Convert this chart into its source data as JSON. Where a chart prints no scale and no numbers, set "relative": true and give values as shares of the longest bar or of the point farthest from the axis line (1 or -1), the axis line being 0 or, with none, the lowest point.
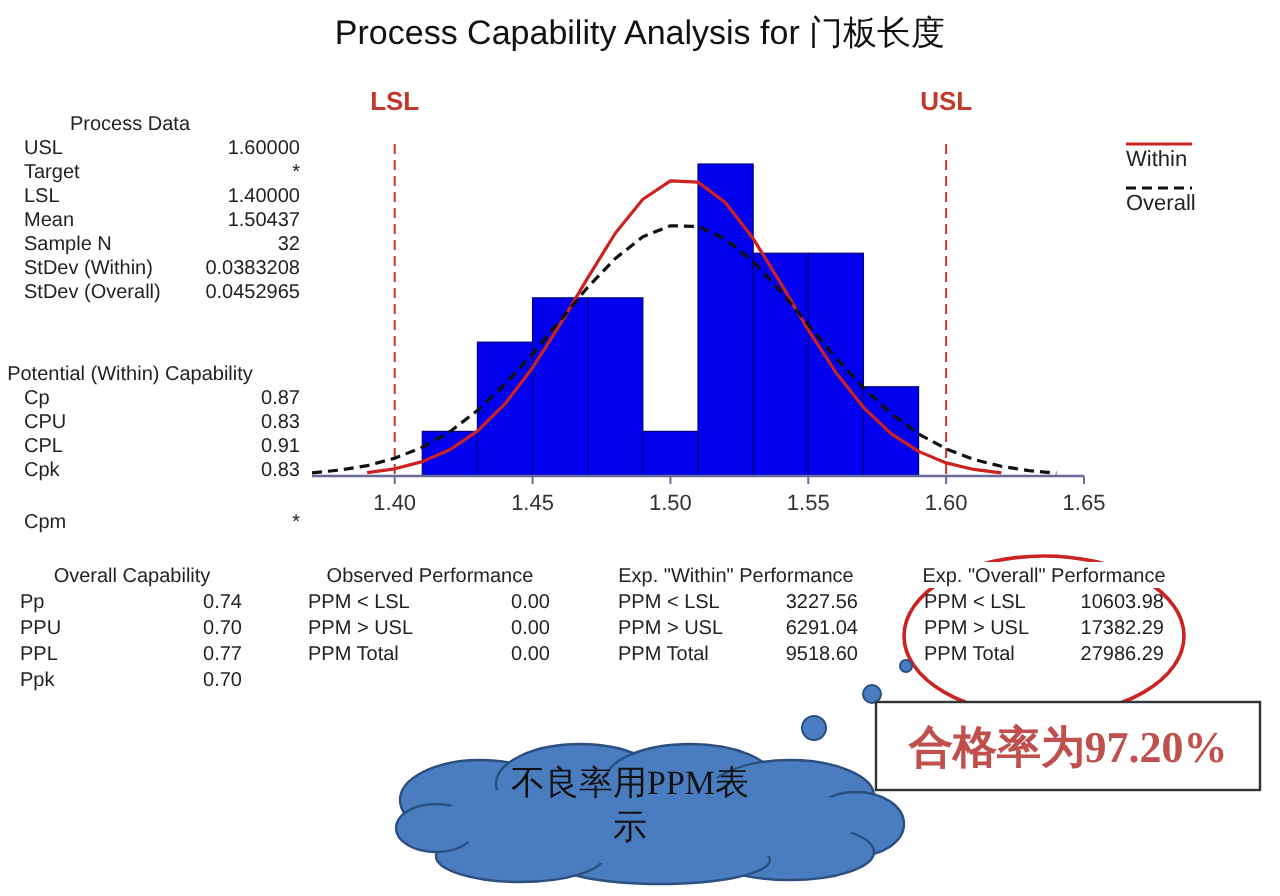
{
  "chart_data": {
    "type": "histogram",
    "title": "Process Capability Analysis for 门板长度",
    "relative": true,
    "bins": [
      1.41,
      1.43,
      1.45,
      1.47,
      1.49,
      1.51,
      1.53,
      1.55,
      1.57,
      1.59
    ],
    "values": [
      0.143,
      0.429,
      0.571,
      0.571,
      0.143,
      1,
      0.714,
      0.714,
      0.286
    ],
    "color": "#0000ee",
    "series": [
      {
        "name": "Within",
        "type": "line",
        "color": "#cc2222",
        "line_style": "solid",
        "x": [
          1.39,
          1.4,
          1.41,
          1.42,
          1.43,
          1.44,
          1.45,
          1.46,
          1.47,
          1.48,
          1.49,
          1.5,
          1.51,
          1.52,
          1.53,
          1.54,
          1.55,
          1.56,
          1.57,
          1.58,
          1.59,
          1.6,
          1.61,
          1.62
        ],
        "values": [
          0.011,
          0.023,
          0.046,
          0.084,
          0.144,
          0.231,
          0.347,
          0.486,
          0.635,
          0.778,
          0.887,
          0.946,
          0.942,
          0.876,
          0.761,
          0.618,
          0.468,
          0.332,
          0.22,
          0.136,
          0.079,
          0.042,
          0.021,
          0.01
        ]
      },
      {
        "name": "Overall",
        "type": "line",
        "color": "#111111",
        "line_style": "dashed",
        "x": [
          1.37,
          1.38,
          1.39,
          1.4,
          1.41,
          1.42,
          1.43,
          1.44,
          1.45,
          1.46,
          1.47,
          1.48,
          1.49,
          1.5,
          1.51,
          1.52,
          1.53,
          1.54,
          1.55,
          1.56,
          1.57,
          1.58,
          1.59,
          1.6,
          1.61,
          1.62,
          1.63,
          1.64
        ],
        "values": [
          0.01,
          0.019,
          0.033,
          0.057,
          0.092,
          0.142,
          0.21,
          0.294,
          0.392,
          0.499,
          0.605,
          0.697,
          0.767,
          0.802,
          0.8,
          0.759,
          0.687,
          0.592,
          0.485,
          0.379,
          0.282,
          0.2,
          0.135,
          0.087,
          0.053,
          0.031,
          0.017,
          0.009
        ]
      }
    ],
    "xlim": [
      1.37,
      1.65
    ],
    "xticks": [
      {
        "value": 1.4,
        "label": "1.40"
      },
      {
        "value": 1.45,
        "label": "1.45"
      },
      {
        "value": 1.5,
        "label": "1.50"
      },
      {
        "value": 1.55,
        "label": "1.55"
      },
      {
        "value": 1.6,
        "label": "1.60"
      },
      {
        "value": 1.65,
        "label": "1.65"
      }
    ],
    "ref_lines": [
      {
        "axis": "x",
        "value": 1.4,
        "label": "LSL",
        "color": "#c0392b",
        "line_style": "dashed"
      },
      {
        "axis": "x",
        "value": 1.6,
        "label": "USL",
        "color": "#c0392b",
        "line_style": "dashed"
      }
    ],
    "legend": "top right",
    "grid": false,
    "annotations": [
      "Process Data",
      "USL",
      "1.60000",
      "Target",
      "*",
      "LSL",
      "1.40000",
      "Mean",
      "1.50437",
      "Sample N",
      "32",
      "StDev (Within)",
      "0.0383208",
      "StDev (Overall)",
      "0.0452965",
      "Potential (Within) Capability",
      "Cp",
      "0.87",
      "CPU",
      "0.83",
      "CPL",
      "0.91",
      "Cpk",
      "0.83",
      "Cpm",
      "*",
      "Overall Capability",
      "Pp",
      "0.74",
      "PPU",
      "0.70",
      "PPL",
      "0.77",
      "Ppk",
      "0.70",
      "Observed Performance",
      "PPM < LSL",
      "0.00",
      "PPM > USL",
      "0.00",
      "PPM Total",
      "0.00",
      "Exp. \"Within\" Performance",
      "PPM < LSL",
      "3227.56",
      "PPM > USL",
      "6291.04",
      "PPM Total",
      "9518.60",
      "Exp. \"Overall\" Performance",
      "PPM < LSL",
      "10603.98",
      "PPM > USL",
      "17382.29",
      "PPM Total",
      "27986.29",
      "不良率用PPM表示",
      "合格率为97.20%"
    ]
  }
}
